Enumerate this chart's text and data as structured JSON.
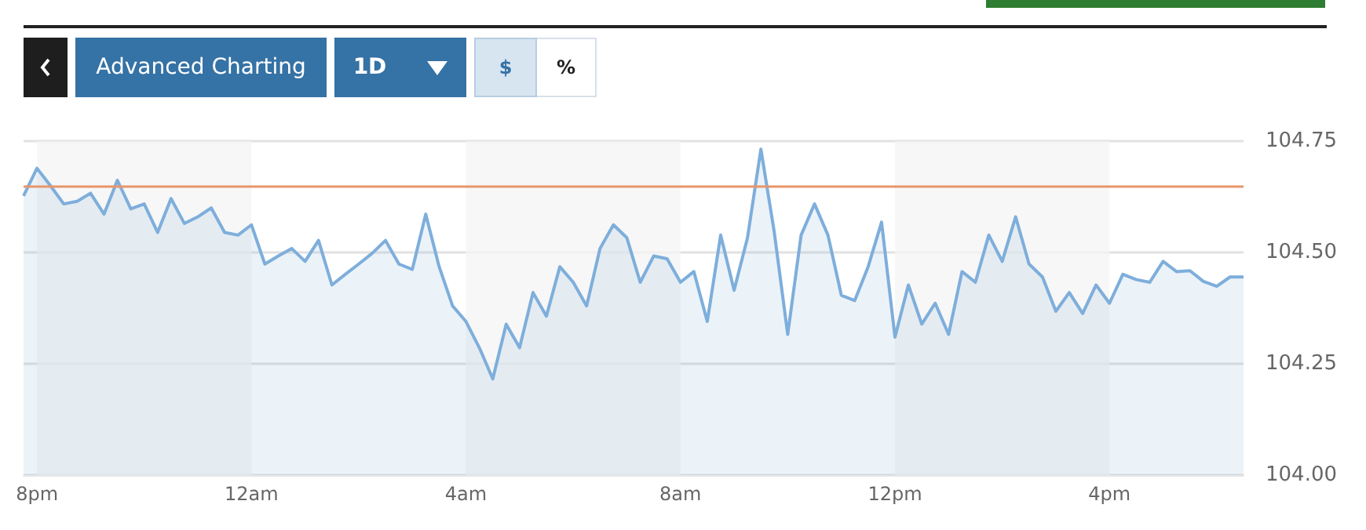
{
  "chart_data": {
    "type": "area",
    "color": "#7eaedb",
    "categories": [
      null,
      "8pm",
      null,
      null,
      null,
      null,
      null,
      null,
      null,
      null,
      null,
      null,
      null,
      null,
      null,
      null,
      null,
      "12am",
      null,
      null,
      null,
      null,
      null,
      null,
      null,
      null,
      null,
      null,
      null,
      null,
      null,
      null,
      null,
      "4am",
      null,
      null,
      null,
      null,
      null,
      null,
      null,
      null,
      null,
      null,
      null,
      null,
      null,
      null,
      null,
      "8am",
      null,
      null,
      null,
      null,
      null,
      null,
      null,
      null,
      null,
      null,
      null,
      null,
      null,
      null,
      null,
      "12pm",
      null,
      null,
      null,
      null,
      null,
      null,
      null,
      null,
      null,
      null,
      null,
      null,
      null,
      null,
      null,
      "4pm",
      null,
      null,
      null,
      null,
      null,
      null,
      null,
      null,
      null,
      null
    ],
    "values": [
      104.627,
      104.689,
      104.65,
      104.609,
      104.615,
      104.633,
      104.586,
      104.662,
      104.598,
      104.609,
      104.545,
      104.621,
      104.565,
      104.58,
      104.6,
      104.545,
      104.539,
      104.562,
      104.474,
      104.492,
      104.509,
      104.48,
      104.527,
      104.427,
      104.451,
      104.474,
      104.498,
      104.527,
      104.474,
      104.462,
      104.586,
      104.468,
      104.38,
      104.345,
      104.286,
      104.216,
      104.339,
      104.286,
      104.41,
      104.357,
      104.468,
      104.433,
      104.38,
      104.509,
      104.562,
      104.533,
      104.433,
      104.492,
      104.486,
      104.433,
      104.457,
      104.345,
      104.539,
      104.415,
      104.533,
      104.732,
      104.545,
      104.316,
      104.539,
      104.609,
      104.539,
      104.404,
      104.392,
      104.468,
      104.568,
      104.31,
      104.427,
      104.339,
      104.386,
      104.316,
      104.457,
      104.433,
      104.539,
      104.48,
      104.58,
      104.474,
      104.445,
      104.368,
      104.41,
      104.363,
      104.427,
      104.386,
      104.451,
      104.439,
      104.433,
      104.48,
      104.457,
      104.459,
      104.435,
      104.424,
      104.445,
      104.445
    ],
    "ylim": [
      104,
      104.75
    ],
    "yticks": [
      {
        "value": 104,
        "label": "104.00"
      },
      {
        "value": 104.25,
        "label": "104.25"
      },
      {
        "value": 104.5,
        "label": "104.50"
      },
      {
        "value": 104.75,
        "label": "104.75"
      }
    ],
    "grid": "y",
    "ref_lines": [
      {
        "axis": "y",
        "value": 104.65,
        "color": "#e8956a"
      }
    ],
    "bands": [
      {
        "axis": "x",
        "from": "8pm",
        "to": "12am",
        "color": "#f4f4f4"
      },
      {
        "axis": "x",
        "from": "4am",
        "to": "8am",
        "color": "#f4f4f4"
      },
      {
        "axis": "x",
        "from": "12pm",
        "to": "4pm",
        "color": "#f4f4f4"
      }
    ],
    "annotations": [
      "Advanced Charting",
      "1D",
      "$",
      "%"
    ]
  }
}
